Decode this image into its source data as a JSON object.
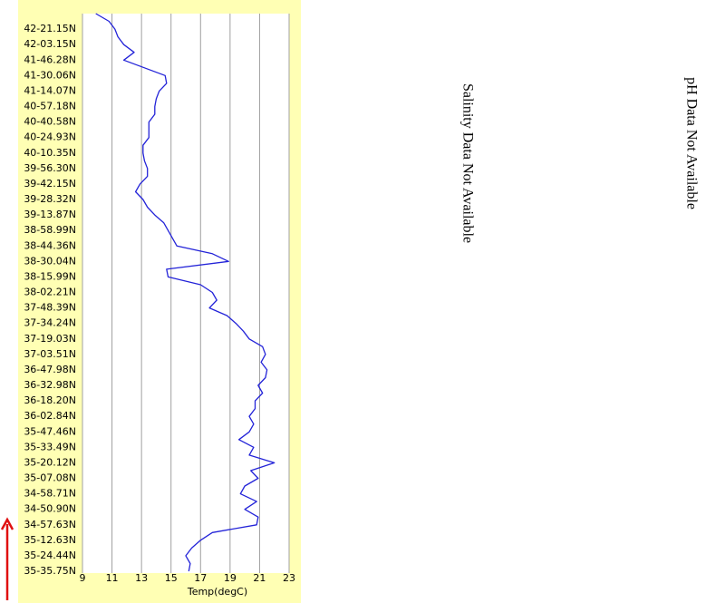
{
  "chart_data": {
    "type": "line",
    "orientation": "horizontal",
    "x_label": "Temp(degC)",
    "categories": [
      null,
      null,
      "42-21.15N",
      null,
      "42-03.15N",
      null,
      "41-46.28N",
      null,
      "41-30.06N",
      null,
      "41-14.07N",
      null,
      "40-57.18N",
      null,
      "40-40.58N",
      null,
      "40-24.93N",
      null,
      "40-10.35N",
      null,
      "39-56.30N",
      null,
      "39-42.15N",
      null,
      "39-28.32N",
      null,
      "39-13.87N",
      null,
      "38-58.99N",
      null,
      "38-44.36N",
      null,
      "38-30.04N",
      null,
      "38-15.99N",
      null,
      "38-02.21N",
      null,
      "37-48.39N",
      null,
      "37-34.24N",
      null,
      "37-19.03N",
      null,
      "37-03.51N",
      null,
      "36-47.98N",
      null,
      "36-32.98N",
      null,
      "36-18.20N",
      null,
      "36-02.84N",
      null,
      "35-47.46N",
      null,
      "35-33.49N",
      null,
      "35-20.12N",
      null,
      "35-07.08N",
      null,
      "34-58.71N",
      null,
      "34-50.90N",
      null,
      "34-57.63N",
      null,
      "35-12.63N",
      null,
      "35-24.44N",
      null,
      "35-35.75N"
    ],
    "series": [
      {
        "color": "#2323d8",
        "values": [
          9.9,
          10.8,
          11.2,
          11.4,
          11.8,
          12.5,
          11.8,
          13.2,
          14.6,
          14.7,
          14.2,
          14.0,
          13.9,
          13.9,
          13.5,
          13.5,
          13.5,
          13.1,
          13.1,
          13.2,
          13.4,
          13.4,
          12.9,
          12.6,
          13.1,
          13.4,
          13.9,
          14.5,
          14.8,
          15.1,
          15.4,
          17.8,
          18.9,
          14.7,
          14.8,
          17.0,
          17.8,
          18.1,
          17.6,
          18.8,
          19.4,
          19.9,
          20.3,
          21.2,
          21.4,
          21.1,
          21.5,
          21.4,
          20.9,
          21.2,
          20.7,
          20.7,
          20.3,
          20.6,
          20.3,
          19.6,
          20.6,
          20.3,
          22.0,
          20.4,
          20.9,
          20.0,
          19.7,
          20.8,
          20.0,
          20.9,
          20.8,
          17.8,
          17.0,
          16.4,
          16.0,
          16.3,
          16.2
        ]
      }
    ],
    "xlim": [
      9,
      23
    ],
    "xticks": [
      9,
      11,
      13,
      15,
      17,
      19,
      21,
      23
    ],
    "grid": true,
    "annotations": [
      "Salinity Data Not Available",
      "pH Data Not Available"
    ]
  }
}
